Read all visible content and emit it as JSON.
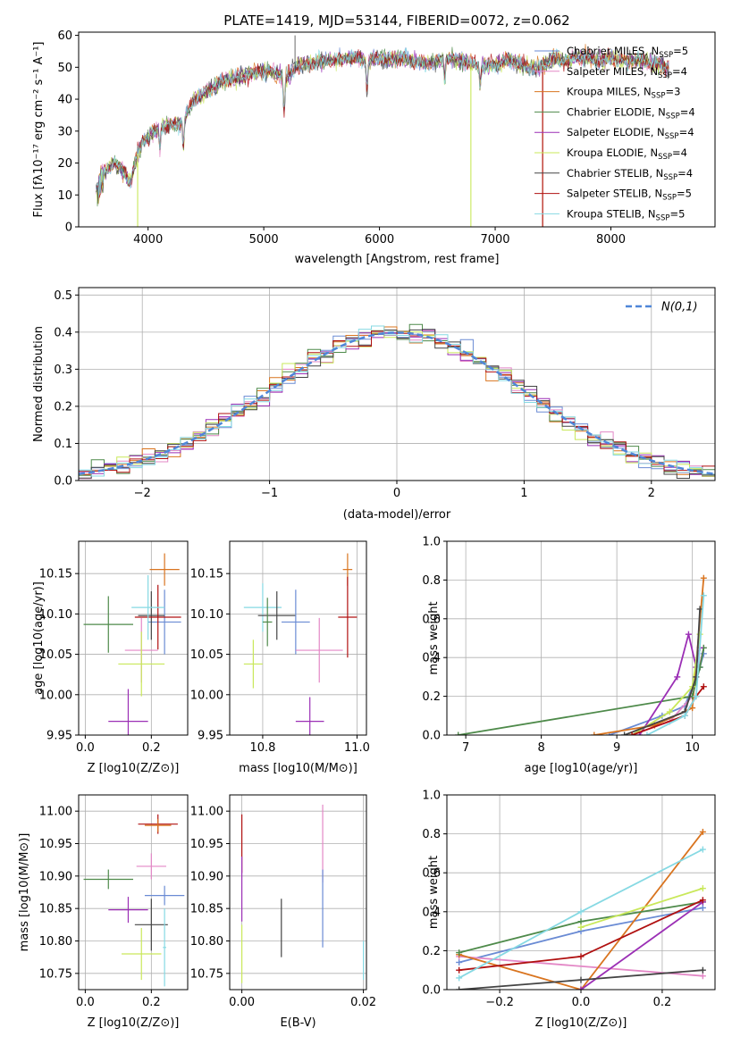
{
  "figure": {
    "colors": {
      "chabrier_miles": "#6a8bd4",
      "salpeter_miles": "#e387c6",
      "kroupa_miles": "#d9741f",
      "chabrier_elodie": "#4e8a4a",
      "salpeter_elodie": "#9b2fb5",
      "kroupa_elodie": "#c9e85a",
      "chabrier_stelib": "#444444",
      "salpeter_stelib": "#b01010",
      "kroupa_stelib": "#86d9e3"
    }
  },
  "chart_data": [
    {
      "id": "spectrum",
      "type": "line",
      "title": "PLATE=1419, MJD=53144, FIBERID=0072, z=0.062",
      "xlabel": "wavelength [Angstrom, rest frame]",
      "ylabel": "Flux [fλ10⁻¹⁷ erg cm⁻² s⁻¹ A⁻¹]",
      "xlim": [
        3400,
        8900
      ],
      "ylim": [
        0,
        61
      ],
      "xticks": [
        4000,
        5000,
        6000,
        7000,
        8000
      ],
      "yticks": [
        0,
        10,
        20,
        30,
        40,
        50,
        60
      ],
      "legend": [
        {
          "key": "chabrier_miles",
          "base": "Chabrier MILES, N",
          "sub": "SSP",
          "tail": "=5"
        },
        {
          "key": "salpeter_miles",
          "base": "Salpeter MILES, N",
          "sub": "SSP",
          "tail": "=4"
        },
        {
          "key": "kroupa_miles",
          "base": "Kroupa MILES, N",
          "sub": "SSP",
          "tail": "=3"
        },
        {
          "key": "chabrier_elodie",
          "base": "Chabrier ELODIE, N",
          "sub": "SSP",
          "tail": "=4"
        },
        {
          "key": "salpeter_elodie",
          "base": "Salpeter ELODIE, N",
          "sub": "SSP",
          "tail": "=4"
        },
        {
          "key": "kroupa_elodie",
          "base": "Kroupa ELODIE, N",
          "sub": "SSP",
          "tail": "=4"
        },
        {
          "key": "chabrier_stelib",
          "base": "Chabrier STELIB, N",
          "sub": "SSP",
          "tail": "=4"
        },
        {
          "key": "salpeter_stelib",
          "base": "Salpeter STELIB, N",
          "sub": "SSP",
          "tail": "=5"
        },
        {
          "key": "kroupa_stelib",
          "base": "Kroupa STELIB, N",
          "sub": "SSP",
          "tail": "=5"
        }
      ],
      "legend_position": "right",
      "continuum": [
        [
          3550,
          12
        ],
        [
          3600,
          17
        ],
        [
          3650,
          18
        ],
        [
          3700,
          20
        ],
        [
          3750,
          19
        ],
        [
          3800,
          17
        ],
        [
          3850,
          14
        ],
        [
          3900,
          22
        ],
        [
          3950,
          27
        ],
        [
          4000,
          28
        ],
        [
          4100,
          31
        ],
        [
          4200,
          32
        ],
        [
          4300,
          33
        ],
        [
          4400,
          40
        ],
        [
          4500,
          42
        ],
        [
          4600,
          45
        ],
        [
          4700,
          46
        ],
        [
          4800,
          47
        ],
        [
          4900,
          48
        ],
        [
          5000,
          49
        ],
        [
          5100,
          48
        ],
        [
          5200,
          47
        ],
        [
          5300,
          51
        ],
        [
          5400,
          51
        ],
        [
          5500,
          52
        ],
        [
          5600,
          52
        ],
        [
          5700,
          53
        ],
        [
          5800,
          53
        ],
        [
          5900,
          52
        ],
        [
          6000,
          53
        ],
        [
          6100,
          52
        ],
        [
          6200,
          53
        ],
        [
          6300,
          52
        ],
        [
          6400,
          51
        ],
        [
          6500,
          52
        ],
        [
          6600,
          53
        ],
        [
          6700,
          52
        ],
        [
          6800,
          51
        ],
        [
          6900,
          50
        ],
        [
          7000,
          51
        ],
        [
          7100,
          52
        ],
        [
          7200,
          51
        ],
        [
          7300,
          50
        ],
        [
          7400,
          50
        ],
        [
          7500,
          53
        ],
        [
          7600,
          52
        ],
        [
          7700,
          53
        ],
        [
          7800,
          53
        ],
        [
          7900,
          52
        ],
        [
          8000,
          53
        ],
        [
          8100,
          52
        ],
        [
          8200,
          52
        ],
        [
          8300,
          52
        ],
        [
          8400,
          51
        ],
        [
          8500,
          50
        ]
      ],
      "absorption_dips": [
        [
          3934,
          1
        ],
        [
          4102,
          6
        ],
        [
          4305,
          8
        ],
        [
          5176,
          12
        ],
        [
          5892,
          10
        ],
        [
          6563,
          7
        ],
        [
          6870,
          6
        ]
      ],
      "spike_up": [
        5270,
        60
      ],
      "spikes_down": [
        {
          "key": "kroupa_elodie",
          "x": 3910
        },
        {
          "key": "kroupa_elodie",
          "x": 6790
        },
        {
          "key": "kroupa_miles",
          "x": 7410
        },
        {
          "key": "salpeter_stelib",
          "x": 7410
        }
      ],
      "grid": false
    },
    {
      "id": "residuals",
      "type": "step-histogram",
      "xlabel": "(data-model)/error",
      "ylabel": "Normed distribution",
      "xlim": [
        -2.5,
        2.5
      ],
      "ylim": [
        0,
        0.52
      ],
      "xticks": [
        -2,
        -1,
        0,
        1,
        2
      ],
      "yticks": [
        0.0,
        0.1,
        0.2,
        0.3,
        0.4,
        0.5
      ],
      "bin_width": 0.1,
      "reference": {
        "label": "N(0,1)",
        "legend_position": "top-right"
      },
      "grid": true
    },
    {
      "id": "age_vs_Z",
      "type": "errorbar",
      "xlabel": "Z [log10(Z/Z⊙)]",
      "ylabel": "age  [log10(age/yr)]",
      "xlim": [
        -0.02,
        0.31
      ],
      "ylim": [
        9.95,
        10.19
      ],
      "xticks": [
        0.0,
        0.2
      ],
      "yticks": [
        9.95,
        10.0,
        10.05,
        10.1,
        10.15
      ],
      "points": [
        {
          "key": "kroupa_miles",
          "x": 0.24,
          "y": 10.155,
          "xerr": 0.045,
          "yerr": 0.02
        },
        {
          "key": "chabrier_elodie",
          "x": 0.07,
          "y": 10.087,
          "xerr": 0.075,
          "yerr": 0.035
        },
        {
          "key": "chabrier_miles",
          "x": 0.24,
          "y": 10.09,
          "xerr": 0.05,
          "yerr": 0.04
        },
        {
          "key": "chabrier_stelib",
          "x": 0.2,
          "y": 10.098,
          "xerr": 0.04,
          "yerr": 0.03
        },
        {
          "key": "salpeter_stelib",
          "x": 0.22,
          "y": 10.096,
          "xerr": 0.07,
          "yerr": 0.04
        },
        {
          "key": "kroupa_stelib",
          "x": 0.19,
          "y": 10.108,
          "xerr": 0.05,
          "yerr": 0.04
        },
        {
          "key": "salpeter_miles",
          "x": 0.17,
          "y": 10.055,
          "xerr": 0.05,
          "yerr": 0.04
        },
        {
          "key": "kroupa_elodie",
          "x": 0.17,
          "y": 10.038,
          "xerr": 0.07,
          "yerr": 0.04
        },
        {
          "key": "salpeter_elodie",
          "x": 0.13,
          "y": 9.967,
          "xerr": 0.06,
          "yerr": 0.04
        }
      ],
      "grid": true
    },
    {
      "id": "age_vs_mass",
      "type": "errorbar",
      "xlabel": "mass [log10(M/M⊙)]",
      "ylabel": "",
      "xlim": [
        10.73,
        11.02
      ],
      "ylim": [
        9.95,
        10.19
      ],
      "xticks": [
        10.8,
        11.0
      ],
      "yticks": [
        9.95,
        10.0,
        10.05,
        10.1,
        10.15
      ],
      "points": [
        {
          "key": "kroupa_miles",
          "x": 10.98,
          "y": 10.155,
          "xerr": 0.01,
          "yerr": 0.02
        },
        {
          "key": "kroupa_stelib",
          "x": 10.8,
          "y": 10.108,
          "xerr": 0.04,
          "yerr": 0.03
        },
        {
          "key": "chabrier_stelib",
          "x": 10.83,
          "y": 10.098,
          "xerr": 0.04,
          "yerr": 0.03
        },
        {
          "key": "chabrier_miles",
          "x": 10.87,
          "y": 10.09,
          "xerr": 0.03,
          "yerr": 0.04
        },
        {
          "key": "salpeter_stelib",
          "x": 10.98,
          "y": 10.096,
          "xerr": 0.02,
          "yerr": 0.05
        },
        {
          "key": "salpeter_miles",
          "x": 10.92,
          "y": 10.055,
          "xerr": 0.05,
          "yerr": 0.04
        },
        {
          "key": "kroupa_elodie",
          "x": 10.78,
          "y": 10.038,
          "xerr": 0.02,
          "yerr": 0.03
        },
        {
          "key": "salpeter_elodie",
          "x": 10.9,
          "y": 9.967,
          "xerr": 0.03,
          "yerr": 0.03
        },
        {
          "key": "chabrier_elodie",
          "x": 10.81,
          "y": 10.09,
          "xerr": 0.01,
          "yerr": 0.03
        }
      ],
      "grid": true
    },
    {
      "id": "massweight_vs_age",
      "type": "line",
      "xlabel": "age  [log10(age/yr)]",
      "ylabel": "mass weight",
      "xlim": [
        6.75,
        10.3
      ],
      "ylim": [
        0,
        1
      ],
      "xticks": [
        7,
        8,
        9,
        10
      ],
      "yticks": [
        0.0,
        0.2,
        0.4,
        0.6,
        0.8,
        1.0
      ],
      "series": [
        {
          "key": "chabrier_miles",
          "x": [
            8.9,
            9.6,
            9.9,
            10.1,
            10.15
          ],
          "y": [
            0.0,
            0.1,
            0.15,
            0.35,
            0.42
          ]
        },
        {
          "key": "salpeter_miles",
          "x": [
            9.2,
            9.7,
            10.0,
            10.15
          ],
          "y": [
            0.0,
            0.07,
            0.2,
            0.45
          ]
        },
        {
          "key": "kroupa_miles",
          "x": [
            8.7,
            9.5,
            10.0,
            10.15
          ],
          "y": [
            0.0,
            0.05,
            0.14,
            0.81
          ]
        },
        {
          "key": "chabrier_elodie",
          "x": [
            6.9,
            10.0,
            10.1,
            10.15
          ],
          "y": [
            0.0,
            0.2,
            0.35,
            0.45
          ]
        },
        {
          "key": "salpeter_elodie",
          "x": [
            9.3,
            9.8,
            9.95,
            10.05,
            10.1
          ],
          "y": [
            0.0,
            0.3,
            0.52,
            0.35,
            0.45
          ]
        },
        {
          "key": "kroupa_elodie",
          "x": [
            9.2,
            9.7,
            10.0,
            10.1
          ],
          "y": [
            0.0,
            0.12,
            0.25,
            0.52
          ]
        },
        {
          "key": "chabrier_stelib",
          "x": [
            9.1,
            9.9,
            10.05,
            10.1
          ],
          "y": [
            0.0,
            0.12,
            0.3,
            0.65
          ]
        },
        {
          "key": "salpeter_stelib",
          "x": [
            9.2,
            9.9,
            10.05,
            10.15
          ],
          "y": [
            0.0,
            0.1,
            0.2,
            0.25
          ]
        },
        {
          "key": "kroupa_stelib",
          "x": [
            9.4,
            9.9,
            10.05,
            10.15
          ],
          "y": [
            0.0,
            0.1,
            0.2,
            0.72
          ]
        }
      ],
      "grid": true
    },
    {
      "id": "mass_vs_Z",
      "type": "errorbar",
      "xlabel": "Z [log10(Z/Z⊙)]",
      "ylabel": "mass [log10(M/M⊙)]",
      "xlim": [
        -0.02,
        0.31
      ],
      "ylim": [
        10.725,
        11.025
      ],
      "xticks": [
        0.0,
        0.2
      ],
      "yticks": [
        10.75,
        10.8,
        10.85,
        10.9,
        10.95,
        11.0
      ],
      "points": [
        {
          "key": "salpeter_stelib",
          "x": 0.22,
          "y": 10.98,
          "xerr": 0.06,
          "yerr": 0.015
        },
        {
          "key": "kroupa_miles",
          "x": 0.22,
          "y": 10.978,
          "xerr": 0.04,
          "yerr": 0.01
        },
        {
          "key": "salpeter_miles",
          "x": 0.2,
          "y": 10.915,
          "xerr": 0.045,
          "yerr": 0.02
        },
        {
          "key": "chabrier_elodie",
          "x": 0.07,
          "y": 10.895,
          "xerr": 0.075,
          "yerr": 0.015
        },
        {
          "key": "chabrier_miles",
          "x": 0.24,
          "y": 10.87,
          "xerr": 0.06,
          "yerr": 0.015
        },
        {
          "key": "salpeter_elodie",
          "x": 0.13,
          "y": 10.848,
          "xerr": 0.06,
          "yerr": 0.02
        },
        {
          "key": "chabrier_stelib",
          "x": 0.2,
          "y": 10.825,
          "xerr": 0.05,
          "yerr": 0.04
        },
        {
          "key": "kroupa_elodie",
          "x": 0.17,
          "y": 10.78,
          "xerr": 0.06,
          "yerr": 0.04
        },
        {
          "key": "kroupa_stelib",
          "x": 0.24,
          "y": 10.79,
          "xerr": 0.005,
          "yerr": 0.06
        }
      ],
      "grid": true
    },
    {
      "id": "mass_vs_EBV",
      "type": "errorbar",
      "xlabel": "E(B-V)",
      "ylabel": "",
      "xlim": [
        -0.002,
        0.0205
      ],
      "ylim": [
        10.725,
        11.025
      ],
      "xticks": [
        0.0,
        0.02
      ],
      "yticks": [
        10.75,
        10.8,
        10.85,
        10.9,
        10.95,
        11.0
      ],
      "points": [
        {
          "key": "salpeter_stelib",
          "x": 0.0,
          "y": 10.95,
          "xerr": 0.0,
          "yerr": 0.045
        },
        {
          "key": "salpeter_elodie",
          "x": 0.0,
          "y": 10.88,
          "xerr": 0.0,
          "yerr": 0.05
        },
        {
          "key": "kroupa_elodie",
          "x": 0.0,
          "y": 10.78,
          "xerr": 0.0,
          "yerr": 0.045
        },
        {
          "key": "chabrier_stelib",
          "x": 0.0065,
          "y": 10.82,
          "xerr": 0.0,
          "yerr": 0.045
        },
        {
          "key": "salpeter_miles",
          "x": 0.0133,
          "y": 10.95,
          "xerr": 0.0,
          "yerr": 0.06
        },
        {
          "key": "chabrier_miles",
          "x": 0.0133,
          "y": 10.85,
          "xerr": 0.0,
          "yerr": 0.06
        },
        {
          "key": "kroupa_stelib",
          "x": 0.02,
          "y": 10.77,
          "xerr": 0.0,
          "yerr": 0.03
        }
      ],
      "grid": true
    },
    {
      "id": "massweight_vs_Z",
      "type": "line",
      "xlabel": "Z [log10(Z/Z⊙)]",
      "ylabel": "mass weight",
      "xlim": [
        -0.33,
        0.33
      ],
      "ylim": [
        0,
        1
      ],
      "xticks": [
        -0.2,
        0.0,
        0.2
      ],
      "yticks": [
        0.0,
        0.2,
        0.4,
        0.6,
        0.8,
        1.0
      ],
      "series": [
        {
          "key": "chabrier_miles",
          "x": [
            -0.3,
            0.0,
            0.3
          ],
          "y": [
            0.14,
            0.3,
            0.42
          ]
        },
        {
          "key": "salpeter_miles",
          "x": [
            -0.3,
            0.3
          ],
          "y": [
            0.17,
            0.07
          ]
        },
        {
          "key": "kroupa_miles",
          "x": [
            -0.3,
            0.0,
            0.3
          ],
          "y": [
            0.18,
            0.0,
            0.81
          ]
        },
        {
          "key": "chabrier_elodie",
          "x": [
            -0.3,
            0.0,
            0.3
          ],
          "y": [
            0.19,
            0.35,
            0.45
          ]
        },
        {
          "key": "salpeter_elodie",
          "x": [
            0.0,
            0.3
          ],
          "y": [
            0.0,
            0.45
          ]
        },
        {
          "key": "kroupa_elodie",
          "x": [
            0.0,
            0.3
          ],
          "y": [
            0.32,
            0.52
          ]
        },
        {
          "key": "chabrier_stelib",
          "x": [
            -0.3,
            0.0,
            0.3
          ],
          "y": [
            0.0,
            0.05,
            0.1
          ]
        },
        {
          "key": "salpeter_stelib",
          "x": [
            -0.3,
            0.0,
            0.3
          ],
          "y": [
            0.1,
            0.17,
            0.46
          ]
        },
        {
          "key": "kroupa_stelib",
          "x": [
            -0.3,
            0.0,
            0.3
          ],
          "y": [
            0.06,
            0.4,
            0.72
          ]
        }
      ],
      "grid": true
    }
  ]
}
